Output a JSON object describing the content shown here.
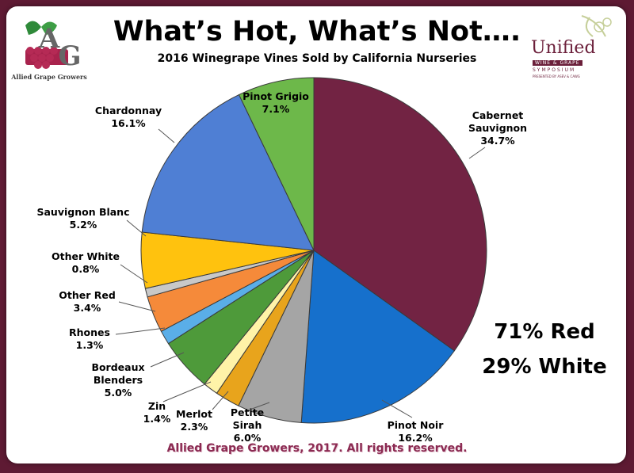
{
  "title": "What’s Hot, What’s Not….",
  "subtitle": "2016 Winegrape Vines Sold by California Nurseries",
  "footer": "Allied Grape Growers, 2017.  All rights reserved.",
  "summary": {
    "red": "71% Red",
    "white": "29% White"
  },
  "logos": {
    "left_letters": "AGG",
    "left_caption": "Allied Grape Growers",
    "right_brand": "Unified",
    "right_line2": "WINE & GRAPE",
    "right_line3": "SYMPOSIUM",
    "right_line4": "PRESENTED BY ASEV & CAWG"
  },
  "colors": {
    "frame": "#6b1f3a",
    "footer_text": "#8b2a52"
  },
  "chart_data": {
    "type": "pie",
    "title": "2016 Winegrape Vines Sold by California Nurseries",
    "start_angle_deg": 0,
    "direction": "clockwise",
    "slices": [
      {
        "name": "Cabernet Sauvignon",
        "lines": [
          "Cabernet",
          "Sauvignon",
          "34.7%"
        ],
        "value": 34.7,
        "color": "#722343"
      },
      {
        "name": "Pinot Noir",
        "lines": [
          "Pinot Noir",
          "16.2%"
        ],
        "value": 16.2,
        "color": "#1670cc"
      },
      {
        "name": "Petite Sirah",
        "lines": [
          "Petite",
          "Sirah",
          "6.0%"
        ],
        "value": 6.0,
        "color": "#a5a5a5"
      },
      {
        "name": "Merlot",
        "lines": [
          "Merlot",
          "2.3%"
        ],
        "value": 2.3,
        "color": "#e8a41c"
      },
      {
        "name": "Zin",
        "lines": [
          "Zin",
          "1.4%"
        ],
        "value": 1.4,
        "color": "#fff3a8"
      },
      {
        "name": "Bordeaux Blenders",
        "lines": [
          "Bordeaux",
          "Blenders",
          "5.0%"
        ],
        "value": 5.0,
        "color": "#4e9a3a"
      },
      {
        "name": "Rhones",
        "lines": [
          "Rhones",
          "1.3%"
        ],
        "value": 1.3,
        "color": "#5aaee8"
      },
      {
        "name": "Other Red",
        "lines": [
          "Other Red",
          "3.4%"
        ],
        "value": 3.4,
        "color": "#f58a3a"
      },
      {
        "name": "Other White",
        "lines": [
          "Other White",
          "0.8%"
        ],
        "value": 0.8,
        "color": "#c8c8c8"
      },
      {
        "name": "Sauvignon Blanc",
        "lines": [
          "Sauvignon Blanc",
          "5.2%"
        ],
        "value": 5.2,
        "color": "#ffc20e"
      },
      {
        "name": "Chardonnay",
        "lines": [
          "Chardonnay",
          "16.1%"
        ],
        "value": 16.1,
        "color": "#4f7fd4"
      },
      {
        "name": "Pinot Grigio",
        "lines": [
          "Pinot Grigio",
          "7.1%"
        ],
        "value": 7.1,
        "color": "#6db84a"
      }
    ]
  }
}
